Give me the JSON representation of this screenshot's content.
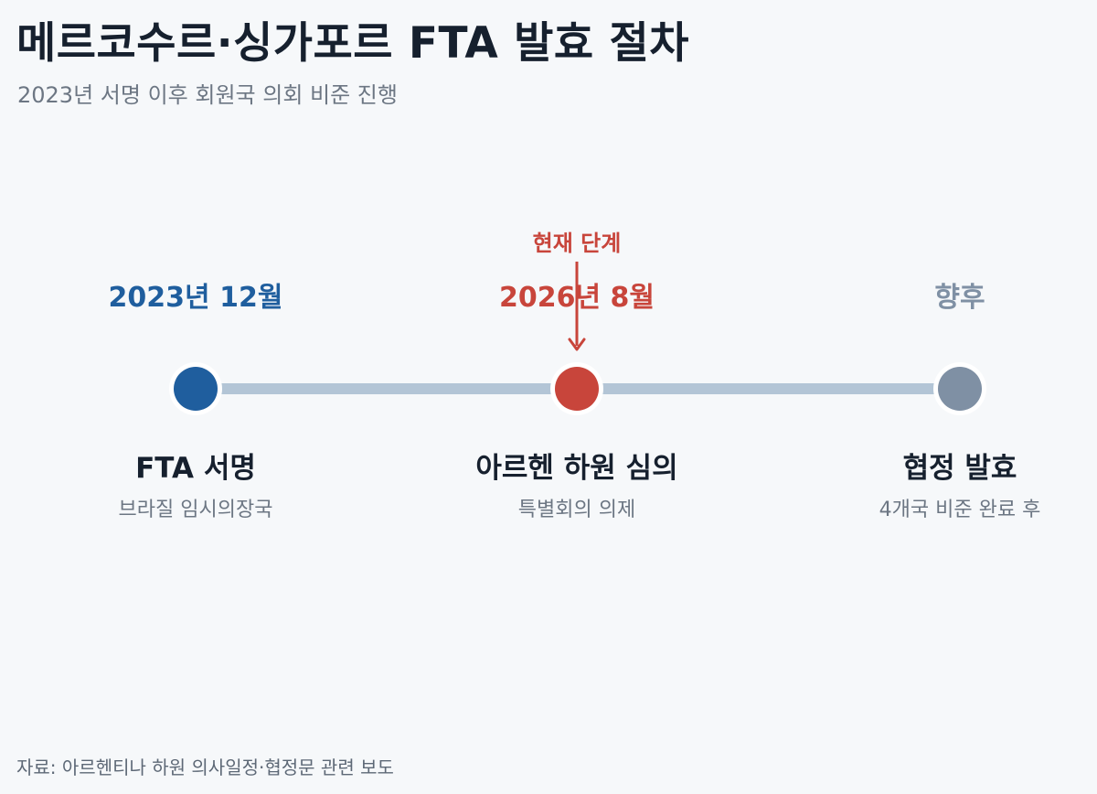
{
  "header": {
    "title": "메르코수르·싱가포르 FTA 발효 절차",
    "subtitle": "2023년 서명 이후 회원국 의회 비준 진행"
  },
  "timeline": {
    "current_marker_label": "현재 단계",
    "colors": {
      "line": "#b3c5d6",
      "completed": "#1f5e9e",
      "current": "#c8453b",
      "future": "#7f90a4",
      "title": "#16202e",
      "description": "#6c7683"
    },
    "stages": [
      {
        "date": "2023년 12월",
        "title": "FTA 서명",
        "description": "브라질 임시의장국",
        "status": "completed"
      },
      {
        "date": "2026년 8월",
        "title": "아르헨 하원 심의",
        "description": "특별회의 의제",
        "status": "current"
      },
      {
        "date": "향후",
        "title": "협정 발효",
        "description": "4개국 비준 완료 후",
        "status": "future"
      }
    ]
  },
  "footer": {
    "source": "자료: 아르헨티나 하원 의사일정·협정문 관련 보도"
  }
}
